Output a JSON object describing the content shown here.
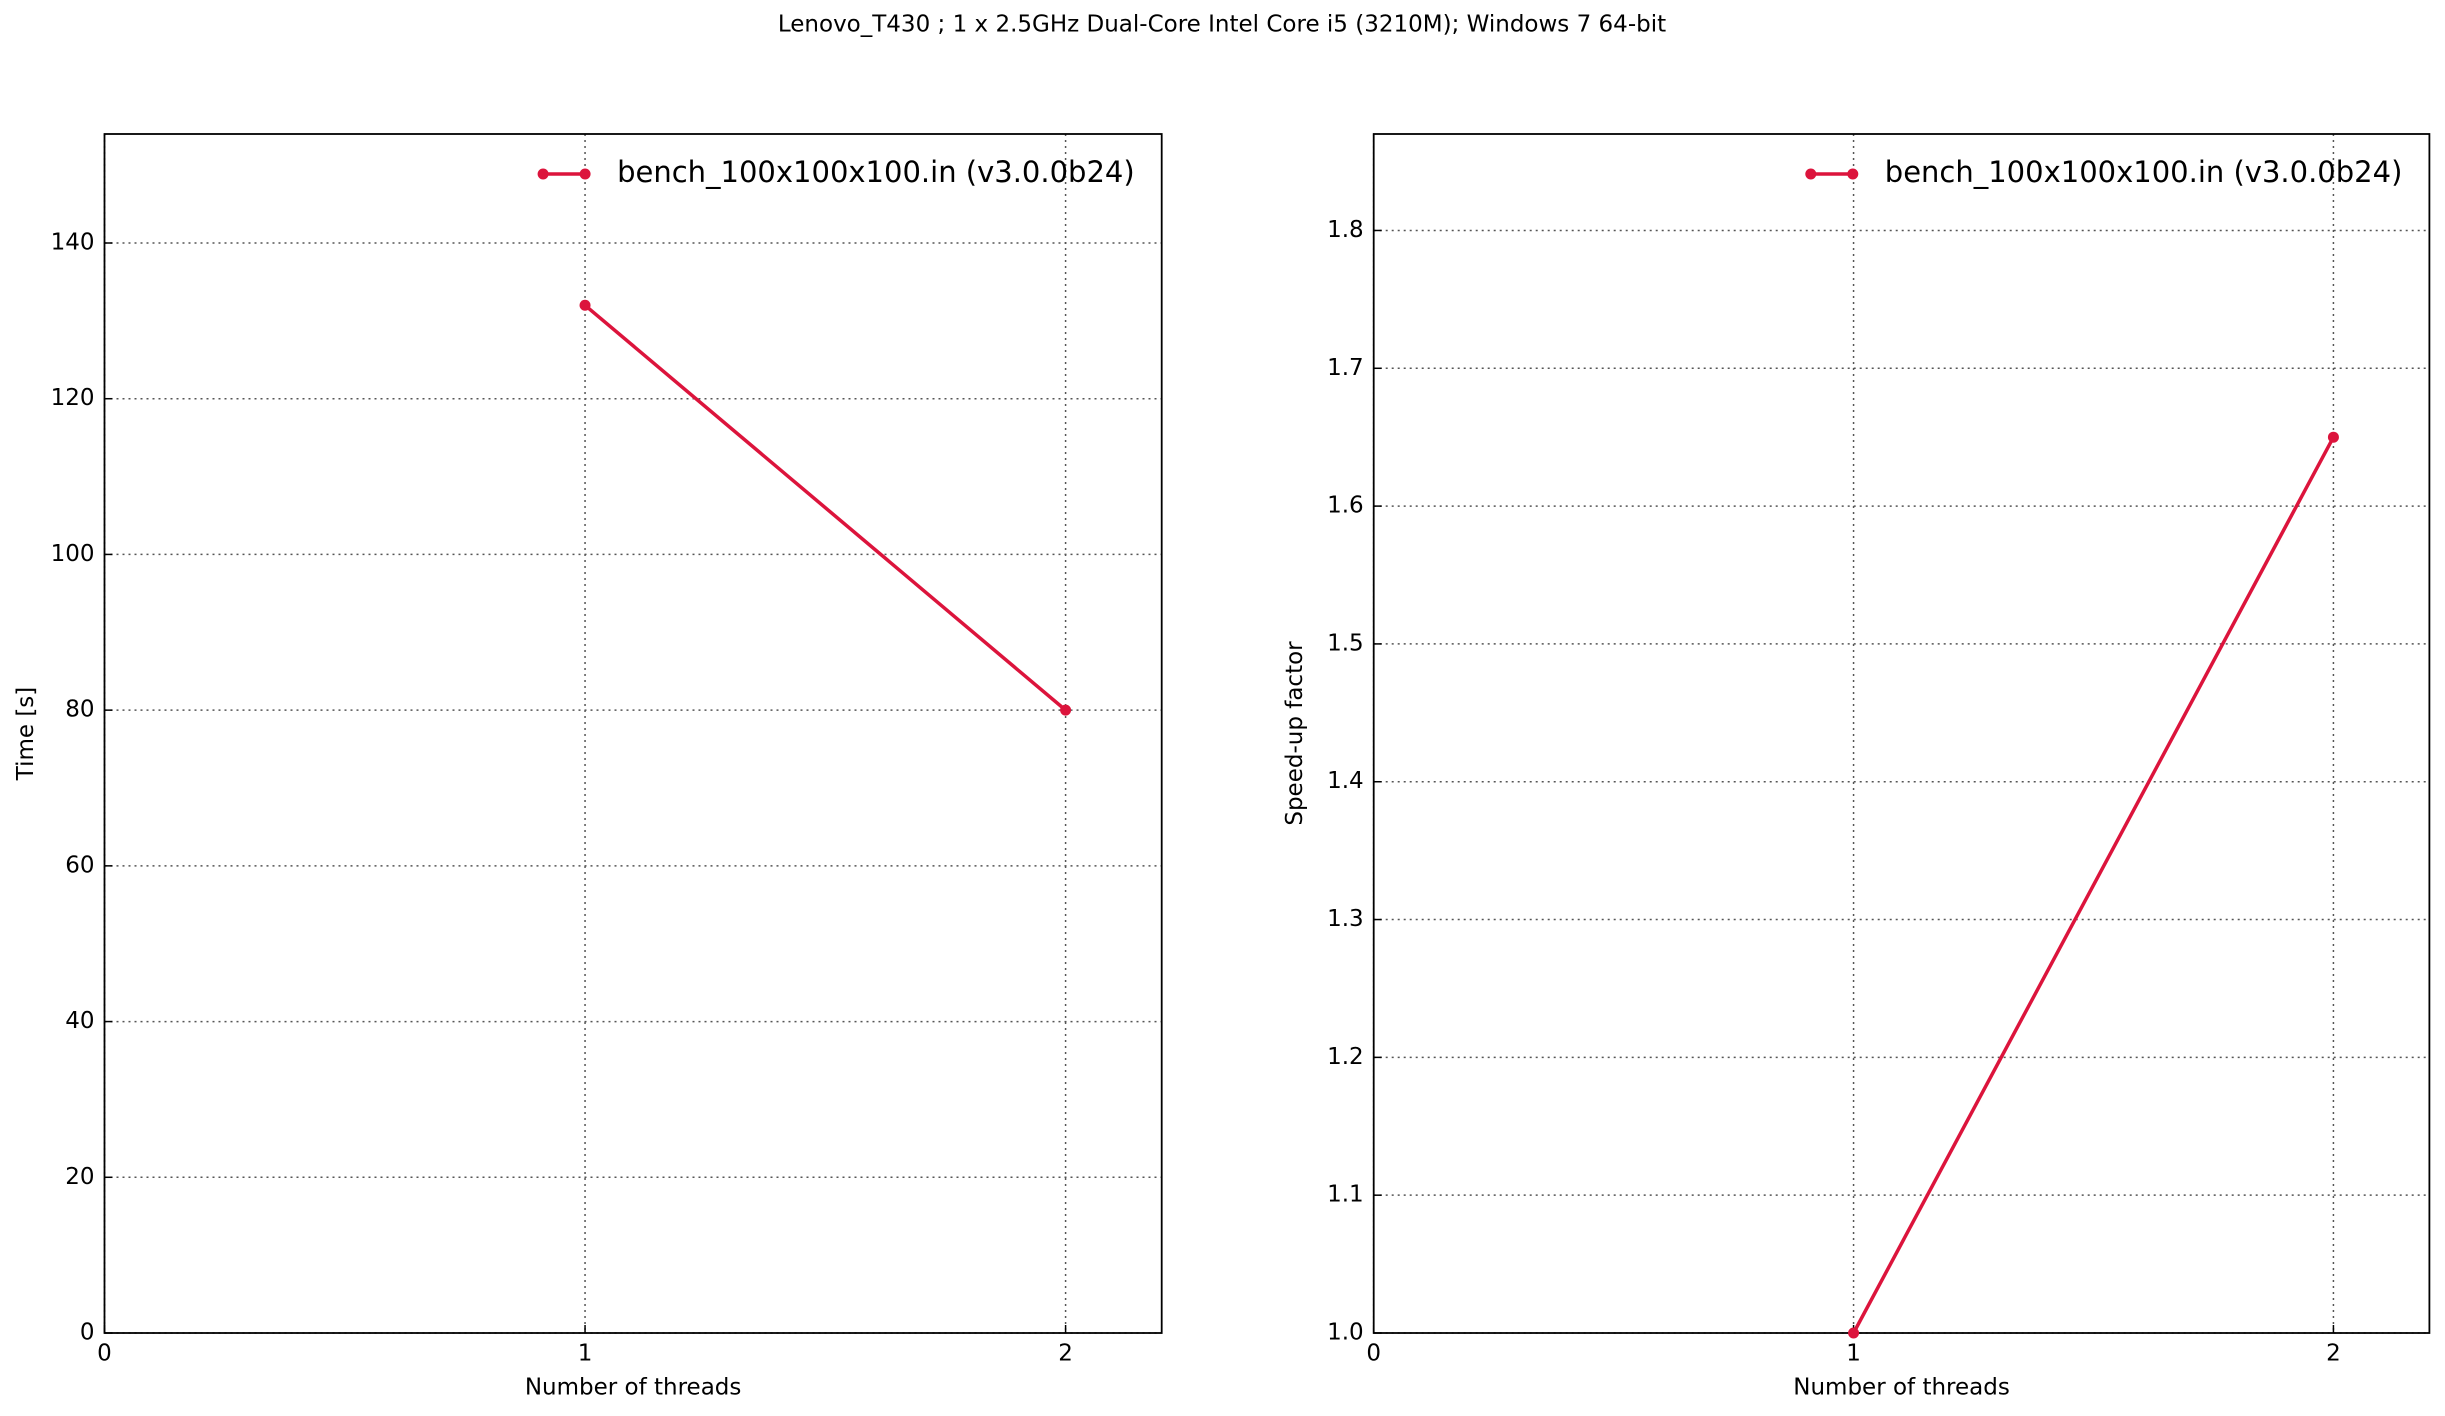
{
  "title": "Lenovo_T430 ; 1 x 2.5GHz Dual-Core Intel Core i5 (3210M); Windows 7 64-bit",
  "chart_data": [
    {
      "type": "line",
      "x_label": "Number of threads",
      "y_label": "Time [s]",
      "x": [
        1,
        2
      ],
      "series": [
        {
          "name": "bench_100x100x100.in (v3.0.0b24)",
          "color": "#dc143c",
          "values": [
            132,
            80
          ]
        }
      ],
      "xlim": [
        0,
        2.2
      ],
      "xticks": [
        0,
        1,
        2
      ],
      "ylim": [
        0,
        154
      ],
      "yticks": [
        0,
        20,
        40,
        60,
        80,
        100,
        120,
        140
      ],
      "grid": true,
      "legend": "upper right"
    },
    {
      "type": "line",
      "x_label": "Number of threads",
      "y_label": "Speed-up factor",
      "x": [
        1,
        2
      ],
      "series": [
        {
          "name": "bench_100x100x100.in (v3.0.0b24)",
          "color": "#dc143c",
          "values": [
            1.0,
            1.65
          ]
        }
      ],
      "xlim": [
        0,
        2.2
      ],
      "xticks": [
        0,
        1,
        2
      ],
      "ylim": [
        1.0,
        1.87
      ],
      "yticks": [
        {
          "value": 1,
          "label": "1.0"
        },
        1.1,
        1.2,
        1.3,
        1.4,
        1.5,
        1.6,
        1.7,
        1.8
      ],
      "grid": true,
      "legend": "upper right"
    }
  ]
}
